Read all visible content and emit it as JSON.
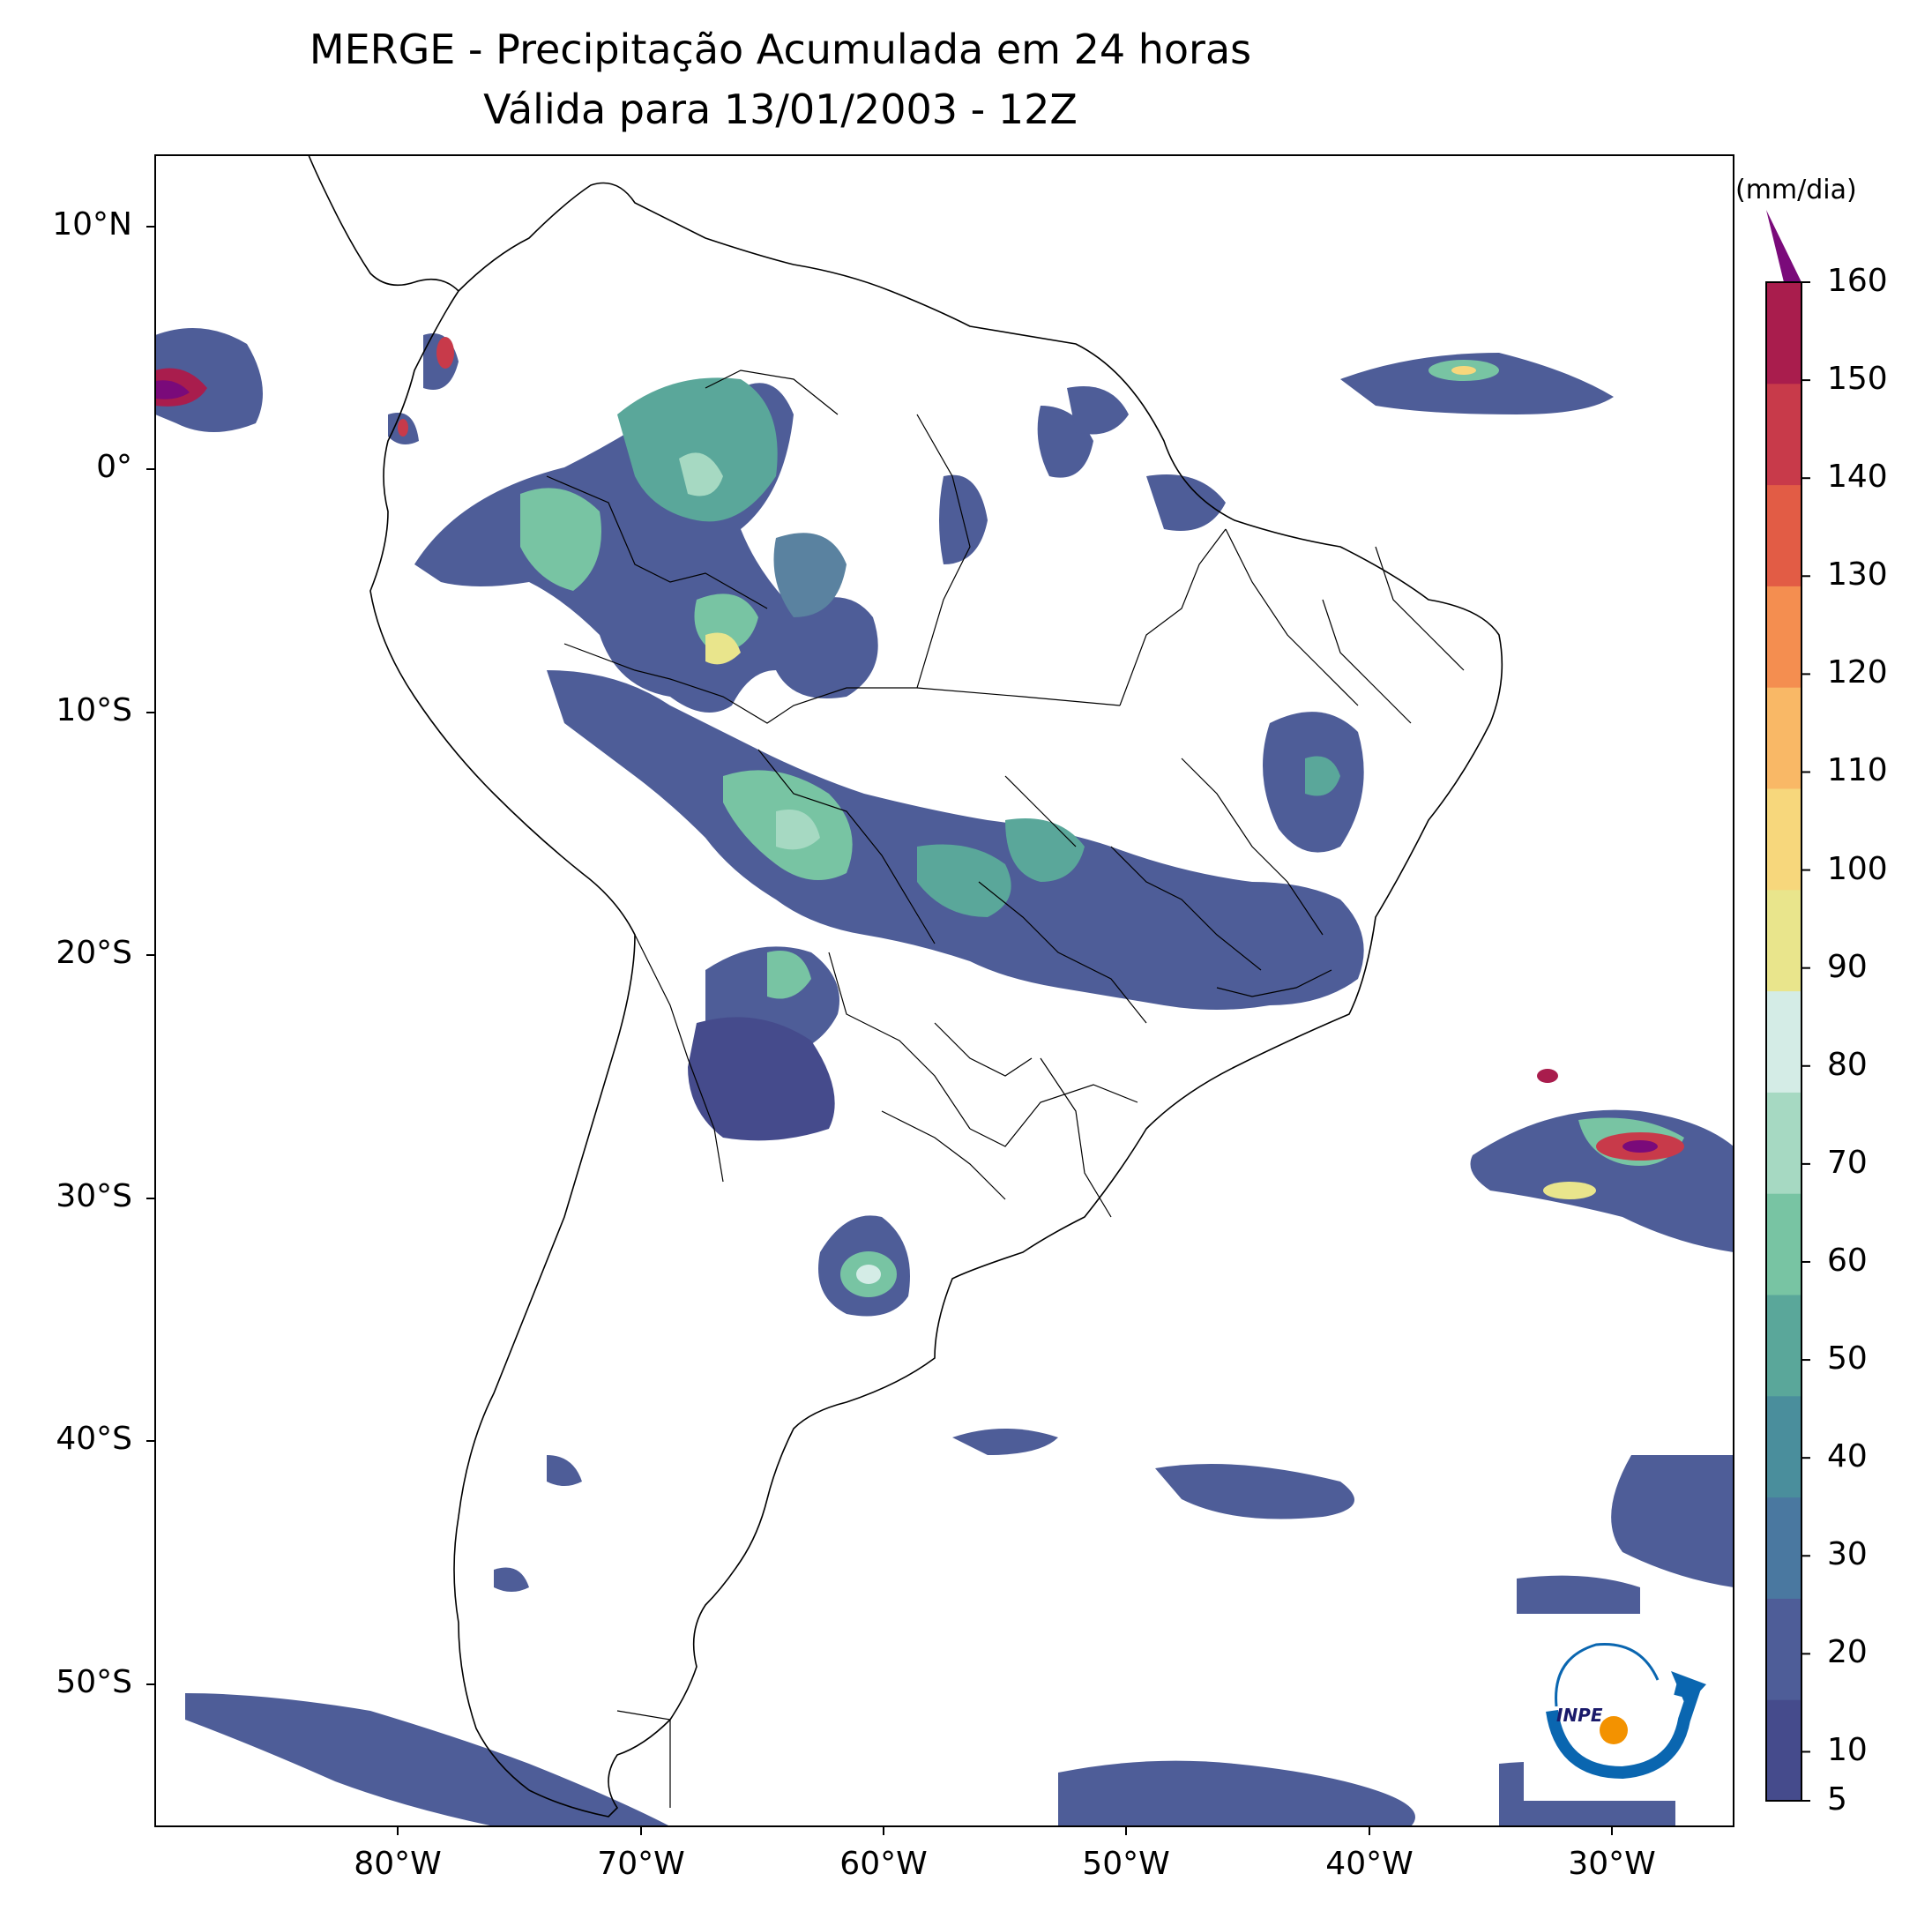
{
  "title": {
    "line1": "MERGE - Precipitação Acumulada em 24 horas",
    "line2": "Válida para 13/01/2003 - 12Z"
  },
  "map": {
    "region": "South America",
    "projection": "PlateCarree",
    "extent_lon": [
      -90,
      -25
    ],
    "extent_lat": [
      -56,
      13
    ],
    "lat_ticks": [
      "10°N",
      "0°",
      "10°S",
      "20°S",
      "30°S",
      "40°S",
      "50°S"
    ],
    "lon_ticks": [
      "80°W",
      "70°W",
      "60°W",
      "50°W",
      "40°W",
      "30°W"
    ],
    "borders": "country and state boundaries (black lines)"
  },
  "colorbar": {
    "unit": "(mm/dia)",
    "labels": [
      "5",
      "10",
      "20",
      "30",
      "40",
      "50",
      "60",
      "70",
      "80",
      "90",
      "100",
      "110",
      "120",
      "130",
      "140",
      "150",
      "160"
    ],
    "min": 5,
    "max": 160,
    "extend": "max",
    "colors": [
      "#454b8c",
      "#4e5d98",
      "#4a78a0",
      "#4a8e9c",
      "#5aa79a",
      "#78c4a3",
      "#a6d9c2",
      "#d4ece6",
      "#e9e58c",
      "#f7d77c",
      "#f9b866",
      "#f48e50",
      "#e25c45",
      "#c83a4a",
      "#a91d4d",
      "#7a0a7a"
    ]
  },
  "logo": {
    "text": "INPE",
    "colors": {
      "arc": "#0a66b0",
      "sun": "#f39200"
    }
  }
}
